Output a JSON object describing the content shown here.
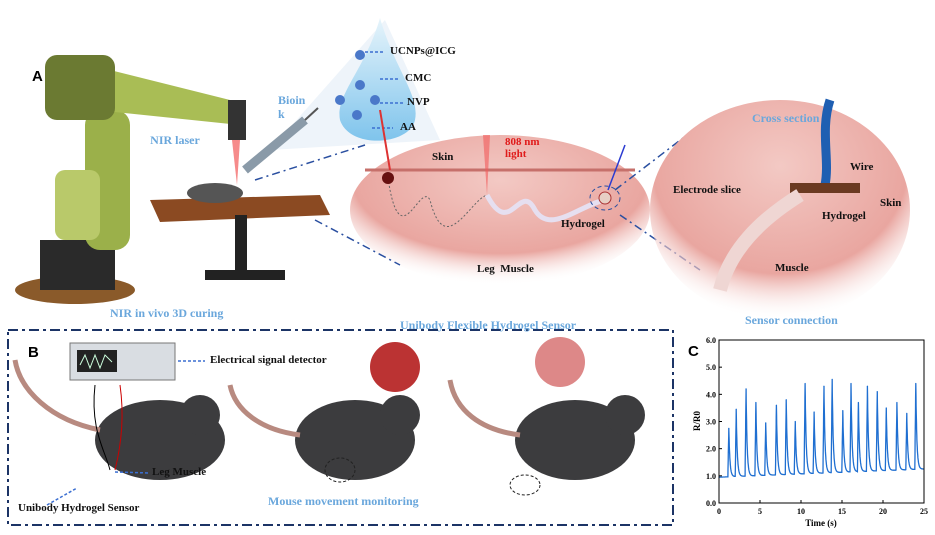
{
  "panel_a": {
    "letter": "A",
    "nir_laser": "NIR laser",
    "bioink_1": "Bioin",
    "bioink_2": "k",
    "components": [
      "UCNPs@ICG",
      "CMC",
      "NVP",
      "AA"
    ],
    "skin": "Skin",
    "light": "808 nm light",
    "hydrogel": "Hydrogel",
    "leg_muscle": "Leg  Muscle",
    "caption_left": "NIR  in vivo 3D curing",
    "cross_section": "Cross section",
    "wire": "Wire",
    "electrode_slice": "Electrode slice",
    "skin_right": "Skin",
    "hydrogel_right": "Hydrogel",
    "muscle": "Muscle",
    "caption_right": "Sensor connection",
    "caption_center": "Unibody Flexible Hydrogel Sensor"
  },
  "panel_b": {
    "letter": "B",
    "detector": "Electrical signal detector",
    "leg_muscle": "Leg Muscle",
    "sensor": "Unibody Hydrogel Sensor",
    "monitoring": "Mouse movement monitoring"
  },
  "chart_data": {
    "letter": "C",
    "type": "line",
    "xlabel": "Time (s)",
    "ylabel": "R/R0",
    "xlim": [
      0,
      25
    ],
    "ylim": [
      0,
      6
    ],
    "xticks": [
      "0",
      "5",
      "10",
      "15",
      "20",
      "25"
    ],
    "yticks": [
      "0.0",
      "1.0",
      "2.0",
      "3.0",
      "4.0",
      "5.0",
      "6.0"
    ],
    "color": "#1f6fd1",
    "baseline": {
      "start": 0.95,
      "end": 1.25
    },
    "peaks": [
      {
        "t": 1.2,
        "v": 2.75
      },
      {
        "t": 2.1,
        "v": 3.45
      },
      {
        "t": 3.3,
        "v": 4.2
      },
      {
        "t": 4.5,
        "v": 3.7
      },
      {
        "t": 5.7,
        "v": 2.95
      },
      {
        "t": 7.0,
        "v": 3.6
      },
      {
        "t": 8.2,
        "v": 3.8
      },
      {
        "t": 9.3,
        "v": 3.0
      },
      {
        "t": 10.5,
        "v": 4.4
      },
      {
        "t": 11.6,
        "v": 3.35
      },
      {
        "t": 12.8,
        "v": 4.3
      },
      {
        "t": 13.8,
        "v": 4.55
      },
      {
        "t": 15.1,
        "v": 3.4
      },
      {
        "t": 16.1,
        "v": 4.4
      },
      {
        "t": 17.0,
        "v": 3.7
      },
      {
        "t": 18.1,
        "v": 4.3
      },
      {
        "t": 19.3,
        "v": 4.1
      },
      {
        "t": 20.4,
        "v": 3.5
      },
      {
        "t": 21.7,
        "v": 3.7
      },
      {
        "t": 22.9,
        "v": 3.3
      },
      {
        "t": 24.0,
        "v": 4.4
      }
    ]
  }
}
